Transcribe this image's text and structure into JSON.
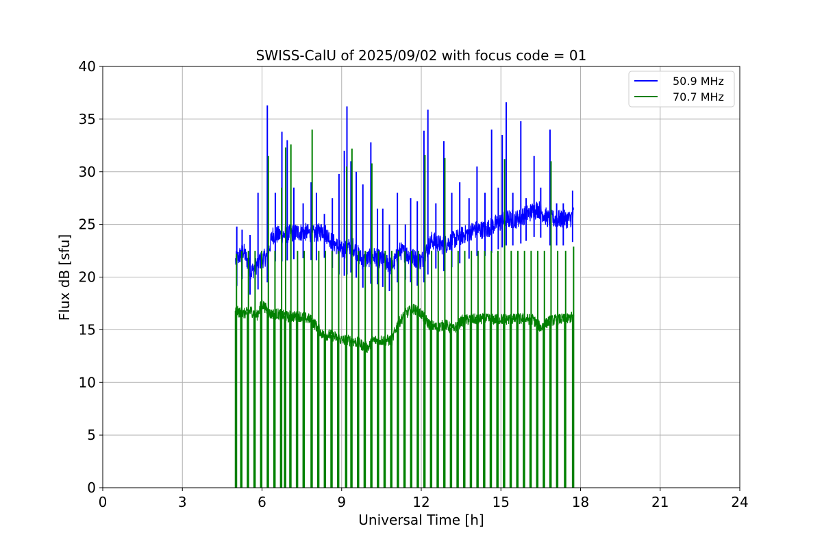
{
  "chart_data": {
    "type": "line",
    "title": "SWISS-CalU of 2025/09/02 with focus code = 01",
    "xlabel": "Universal Time [h]",
    "ylabel": "Flux dB [sfu]",
    "xlim": [
      0,
      24
    ],
    "ylim": [
      0,
      40
    ],
    "xticks": [
      "0",
      "3",
      "6",
      "9",
      "12",
      "15",
      "18",
      "21",
      "24"
    ],
    "yticks": [
      "0",
      "5",
      "10",
      "15",
      "20",
      "25",
      "30",
      "35",
      "40"
    ],
    "grid": true,
    "legend_position": "top-right",
    "series": [
      {
        "name": "50.9 MHz",
        "color": "#0000ff",
        "baseline": [
          [
            5.0,
            21.5
          ],
          [
            5.3,
            22.5
          ],
          [
            5.6,
            20.5
          ],
          [
            5.9,
            21.5
          ],
          [
            6.2,
            22.0
          ],
          [
            6.4,
            24.0
          ],
          [
            6.8,
            24.0
          ],
          [
            7.2,
            24.2
          ],
          [
            7.6,
            24.3
          ],
          [
            8.0,
            24.0
          ],
          [
            8.3,
            24.5
          ],
          [
            8.6,
            23.5
          ],
          [
            9.0,
            22.5
          ],
          [
            9.4,
            23.0
          ],
          [
            9.8,
            21.5
          ],
          [
            10.2,
            22.0
          ],
          [
            10.6,
            21.5
          ],
          [
            10.9,
            21.0
          ],
          [
            11.2,
            22.5
          ],
          [
            11.6,
            22.0
          ],
          [
            12.0,
            21.5
          ],
          [
            12.4,
            23.5
          ],
          [
            12.8,
            23.0
          ],
          [
            13.2,
            23.5
          ],
          [
            13.6,
            24.0
          ],
          [
            14.0,
            24.5
          ],
          [
            14.4,
            24.5
          ],
          [
            14.8,
            25.0
          ],
          [
            15.2,
            25.5
          ],
          [
            15.6,
            25.5
          ],
          [
            16.0,
            26.0
          ],
          [
            16.4,
            26.5
          ],
          [
            16.8,
            25.5
          ],
          [
            17.2,
            25.5
          ],
          [
            17.6,
            25.5
          ],
          [
            17.75,
            26.0
          ]
        ],
        "spikes": [
          [
            5.05,
            24.8
          ],
          [
            5.25,
            24.5
          ],
          [
            5.55,
            24.0
          ],
          [
            5.85,
            28.0
          ],
          [
            6.2,
            36.3
          ],
          [
            6.5,
            28.0
          ],
          [
            6.75,
            33.8
          ],
          [
            6.95,
            33.0
          ],
          [
            7.2,
            28.5
          ],
          [
            7.55,
            27.0
          ],
          [
            7.85,
            29.0
          ],
          [
            8.05,
            28.0
          ],
          [
            8.35,
            26.0
          ],
          [
            8.65,
            27.5
          ],
          [
            8.9,
            29.8
          ],
          [
            9.1,
            32.0
          ],
          [
            9.2,
            36.2
          ],
          [
            9.35,
            31.0
          ],
          [
            9.55,
            30.0
          ],
          [
            9.8,
            28.8
          ],
          [
            10.1,
            32.8
          ],
          [
            10.35,
            26.5
          ],
          [
            10.55,
            26.5
          ],
          [
            10.8,
            25.0
          ],
          [
            11.1,
            28.0
          ],
          [
            11.4,
            25.0
          ],
          [
            11.6,
            27.5
          ],
          [
            11.85,
            27.2
          ],
          [
            12.1,
            33.9
          ],
          [
            12.25,
            35.9
          ],
          [
            12.55,
            27.0
          ],
          [
            12.85,
            32.9
          ],
          [
            13.15,
            28.0
          ],
          [
            13.45,
            29.0
          ],
          [
            13.8,
            27.5
          ],
          [
            14.1,
            30.5
          ],
          [
            14.4,
            28.0
          ],
          [
            14.65,
            34.0
          ],
          [
            14.9,
            28.5
          ],
          [
            15.05,
            33.5
          ],
          [
            15.2,
            36.6
          ],
          [
            15.45,
            28.0
          ],
          [
            15.75,
            34.8
          ],
          [
            15.95,
            27.5
          ],
          [
            16.25,
            31.5
          ],
          [
            16.5,
            28.5
          ],
          [
            16.85,
            34.0
          ],
          [
            17.1,
            27.0
          ],
          [
            17.35,
            27.0
          ],
          [
            17.7,
            28.2
          ]
        ]
      },
      {
        "name": "70.7 MHz",
        "color": "#008000",
        "baseline": [
          [
            5.0,
            16.8
          ],
          [
            5.3,
            16.5
          ],
          [
            5.6,
            16.8
          ],
          [
            5.8,
            16.3
          ],
          [
            6.0,
            17.5
          ],
          [
            6.3,
            16.5
          ],
          [
            6.6,
            16.5
          ],
          [
            7.0,
            16.2
          ],
          [
            7.4,
            16.3
          ],
          [
            7.8,
            16.0
          ],
          [
            8.0,
            15.5
          ],
          [
            8.3,
            14.5
          ],
          [
            8.6,
            14.5
          ],
          [
            9.0,
            14.0
          ],
          [
            9.3,
            14.0
          ],
          [
            9.6,
            13.8
          ],
          [
            9.8,
            13.5
          ],
          [
            10.0,
            13.3
          ],
          [
            10.2,
            14.0
          ],
          [
            10.6,
            14.0
          ],
          [
            10.9,
            14.0
          ],
          [
            11.1,
            15.5
          ],
          [
            11.4,
            16.5
          ],
          [
            11.7,
            17.0
          ],
          [
            12.0,
            16.5
          ],
          [
            12.3,
            15.5
          ],
          [
            12.6,
            15.2
          ],
          [
            12.9,
            15.5
          ],
          [
            13.2,
            15.0
          ],
          [
            13.5,
            15.8
          ],
          [
            13.8,
            16.0
          ],
          [
            14.2,
            16.0
          ],
          [
            14.6,
            16.0
          ],
          [
            15.0,
            16.0
          ],
          [
            15.4,
            16.0
          ],
          [
            15.8,
            16.0
          ],
          [
            16.2,
            16.0
          ],
          [
            16.5,
            15.2
          ],
          [
            16.8,
            15.8
          ],
          [
            17.2,
            16.0
          ],
          [
            17.5,
            16.0
          ],
          [
            17.75,
            16.3
          ]
        ],
        "spikes": [
          [
            5.0,
            22.2
          ],
          [
            5.2,
            22.5
          ],
          [
            5.45,
            22.5
          ],
          [
            5.7,
            22.5
          ],
          [
            5.95,
            22.5
          ],
          [
            6.2,
            31.5
          ],
          [
            6.45,
            22.5
          ],
          [
            6.7,
            28.5
          ],
          [
            6.85,
            32.3
          ],
          [
            7.05,
            32.6
          ],
          [
            7.3,
            22.5
          ],
          [
            7.55,
            22.5
          ],
          [
            7.85,
            34.0
          ],
          [
            8.1,
            22.5
          ],
          [
            8.35,
            22.5
          ],
          [
            8.6,
            22.5
          ],
          [
            8.85,
            22.5
          ],
          [
            9.15,
            30.5
          ],
          [
            9.35,
            32.2
          ],
          [
            9.6,
            22.5
          ],
          [
            9.85,
            22.5
          ],
          [
            10.1,
            30.8
          ],
          [
            10.35,
            22.5
          ],
          [
            10.6,
            22.5
          ],
          [
            10.85,
            22.5
          ],
          [
            11.1,
            22.5
          ],
          [
            11.35,
            22.5
          ],
          [
            11.6,
            22.5
          ],
          [
            11.85,
            22.5
          ],
          [
            12.1,
            31.6
          ],
          [
            12.35,
            22.5
          ],
          [
            12.6,
            22.5
          ],
          [
            12.85,
            31.3
          ],
          [
            13.1,
            22.5
          ],
          [
            13.35,
            22.5
          ],
          [
            13.6,
            22.5
          ],
          [
            13.85,
            22.5
          ],
          [
            14.1,
            22.5
          ],
          [
            14.35,
            22.5
          ],
          [
            14.6,
            22.5
          ],
          [
            14.85,
            22.5
          ],
          [
            15.1,
            31.2
          ],
          [
            15.35,
            22.5
          ],
          [
            15.6,
            22.5
          ],
          [
            15.85,
            22.5
          ],
          [
            16.1,
            22.5
          ],
          [
            16.35,
            22.5
          ],
          [
            16.6,
            22.5
          ],
          [
            16.85,
            31.0
          ],
          [
            17.1,
            22.5
          ],
          [
            17.4,
            22.5
          ],
          [
            17.7,
            22.9
          ]
        ]
      }
    ]
  }
}
